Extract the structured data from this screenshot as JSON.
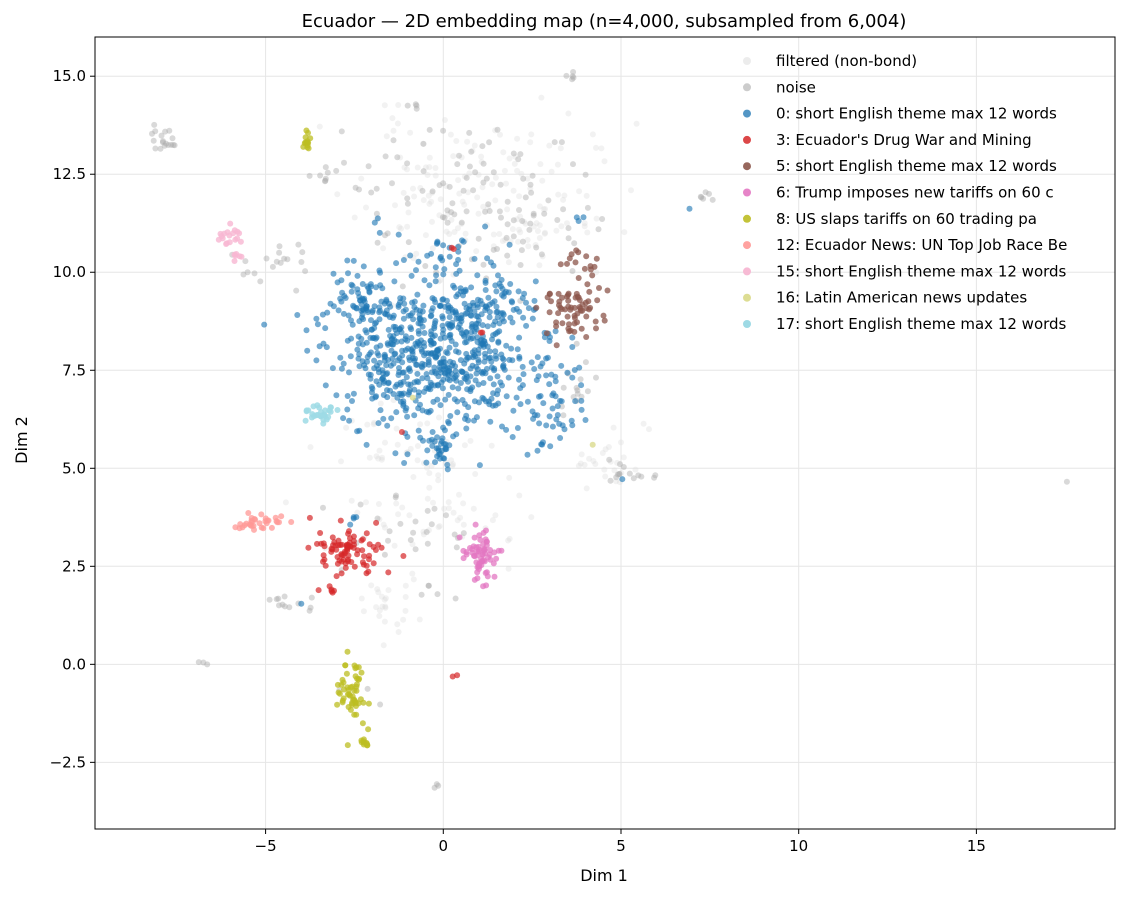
{
  "chart_data": {
    "type": "scatter",
    "title": "Ecuador — 2D embedding map (n=4,000, subsampled from 6,004)",
    "xlabel": "Dim 1",
    "ylabel": "Dim 2",
    "xlim": [
      -9.8,
      18.9
    ],
    "ylim": [
      -4.2,
      16.0
    ],
    "x_ticks": [
      -5,
      0,
      5,
      10,
      15
    ],
    "x_tick_labels": [
      "−5",
      "0",
      "5",
      "10",
      "15"
    ],
    "y_ticks": [
      -2.5,
      0.0,
      2.5,
      5.0,
      7.5,
      10.0,
      12.5,
      15.0
    ],
    "y_tick_labels": [
      "−2.5",
      "0.0",
      "2.5",
      "5.0",
      "7.5",
      "10.0",
      "12.5",
      "15.0"
    ],
    "grid": true,
    "legend_position": "top-right",
    "series": [
      {
        "name": "filtered (non-bond)",
        "color": "#d9d9d9",
        "opacity": 0.35,
        "seed": 11,
        "clusters": [
          {
            "cx": 0.8,
            "cy": 12.0,
            "sx": 1.6,
            "sy": 1.0,
            "n": 140
          },
          {
            "cx": -1.0,
            "cy": 5.6,
            "sx": 1.2,
            "sy": 0.5,
            "n": 45
          },
          {
            "cx": -0.7,
            "cy": 3.6,
            "sx": 1.5,
            "sy": 0.7,
            "n": 45
          },
          {
            "cx": -1.4,
            "cy": 1.5,
            "sx": 0.4,
            "sy": 0.5,
            "n": 25
          },
          {
            "cx": 4.6,
            "cy": 5.1,
            "sx": 0.5,
            "sy": 0.3,
            "n": 25
          },
          {
            "cx": 2.7,
            "cy": 11.0,
            "sx": 0.8,
            "sy": 0.6,
            "n": 25
          }
        ]
      },
      {
        "name": "noise",
        "color": "#aaaaaa",
        "opacity": 0.45,
        "seed": 23,
        "clusters": [
          {
            "cx": 0.5,
            "cy": 12.0,
            "sx": 1.8,
            "sy": 1.1,
            "n": 90
          },
          {
            "cx": -7.8,
            "cy": 13.4,
            "sx": 0.25,
            "sy": 0.2,
            "n": 18
          },
          {
            "cx": -3.3,
            "cy": 12.3,
            "sx": 0.4,
            "sy": 0.15,
            "n": 10
          },
          {
            "cx": -4.2,
            "cy": 10.4,
            "sx": 0.3,
            "sy": 0.15,
            "n": 8
          },
          {
            "cx": -5.3,
            "cy": 10.2,
            "sx": 0.3,
            "sy": 0.3,
            "n": 10
          },
          {
            "cx": 2.5,
            "cy": 10.8,
            "sx": 0.6,
            "sy": 0.6,
            "n": 20
          },
          {
            "cx": 3.6,
            "cy": 15.0,
            "sx": 0.08,
            "sy": 0.05,
            "n": 5
          },
          {
            "cx": -0.8,
            "cy": 14.2,
            "sx": 0.06,
            "sy": 0.05,
            "n": 3
          },
          {
            "cx": 7.3,
            "cy": 11.9,
            "sx": 0.15,
            "sy": 0.1,
            "n": 6
          },
          {
            "cx": 5.0,
            "cy": 4.8,
            "sx": 0.4,
            "sy": 0.2,
            "n": 14
          },
          {
            "cx": -4.2,
            "cy": 1.5,
            "sx": 0.4,
            "sy": 0.15,
            "n": 12
          },
          {
            "cx": -1.0,
            "cy": 3.6,
            "sx": 1.2,
            "sy": 0.5,
            "n": 25
          },
          {
            "cx": -0.2,
            "cy": 1.8,
            "sx": 0.2,
            "sy": 0.1,
            "n": 5
          },
          {
            "cx": -2.8,
            "cy": -0.7,
            "sx": 0.3,
            "sy": 0.2,
            "n": 6
          },
          {
            "cx": -6.8,
            "cy": 0.1,
            "sx": 0.1,
            "sy": 0.05,
            "n": 3
          },
          {
            "cx": -0.2,
            "cy": -3.1,
            "sx": 0.05,
            "sy": 0.05,
            "n": 3
          },
          {
            "cx": 17.5,
            "cy": 4.7,
            "sx": 0.03,
            "sy": 0.03,
            "n": 1
          },
          {
            "cx": 3.7,
            "cy": 7.0,
            "sx": 0.3,
            "sy": 0.5,
            "n": 15
          }
        ]
      },
      {
        "name": "0: short English theme max 12 words",
        "color": "#1f77b4",
        "opacity": 0.62,
        "seed": 37,
        "clusters": [
          {
            "cx": -0.2,
            "cy": 7.9,
            "sx": 1.35,
            "sy": 1.0,
            "n": 650
          },
          {
            "cx": -2.4,
            "cy": 9.3,
            "sx": 0.45,
            "sy": 0.45,
            "n": 70
          },
          {
            "cx": 1.0,
            "cy": 9.3,
            "sx": 0.7,
            "sy": 0.55,
            "n": 70
          },
          {
            "cx": 3.0,
            "cy": 6.8,
            "sx": 0.5,
            "sy": 0.7,
            "n": 55
          },
          {
            "cx": -0.1,
            "cy": 5.5,
            "sx": 0.2,
            "sy": 0.2,
            "n": 25
          },
          {
            "cx": 0.0,
            "cy": 10.5,
            "sx": 0.3,
            "sy": 0.2,
            "n": 15
          },
          {
            "cx": -2.5,
            "cy": 3.7,
            "sx": 0.1,
            "sy": 0.1,
            "n": 4
          },
          {
            "cx": 6.95,
            "cy": 11.65,
            "sx": 0.03,
            "sy": 0.03,
            "n": 1
          },
          {
            "cx": 5.0,
            "cy": 4.75,
            "sx": 0.03,
            "sy": 0.03,
            "n": 1
          },
          {
            "cx": -5.0,
            "cy": 8.7,
            "sx": 0.03,
            "sy": 0.03,
            "n": 1
          },
          {
            "cx": -1.9,
            "cy": 11.3,
            "sx": 0.05,
            "sy": 0.05,
            "n": 2
          },
          {
            "cx": 3.8,
            "cy": 11.3,
            "sx": 0.1,
            "sy": 0.1,
            "n": 3
          },
          {
            "cx": -4.0,
            "cy": 1.6,
            "sx": 0.03,
            "sy": 0.03,
            "n": 1
          }
        ]
      },
      {
        "name": "3: Ecuador's Drug War and Mining",
        "color": "#d62728",
        "opacity": 0.7,
        "seed": 41,
        "clusters": [
          {
            "cx": -2.6,
            "cy": 2.9,
            "sx": 0.45,
            "sy": 0.3,
            "n": 85
          },
          {
            "cx": -3.2,
            "cy": 1.9,
            "sx": 0.08,
            "sy": 0.08,
            "n": 5
          },
          {
            "cx": 0.35,
            "cy": -0.3,
            "sx": 0.05,
            "sy": 0.05,
            "n": 2
          },
          {
            "cx": 1.1,
            "cy": 8.5,
            "sx": 0.05,
            "sy": 0.05,
            "n": 2
          },
          {
            "cx": -1.2,
            "cy": 5.9,
            "sx": 0.03,
            "sy": 0.03,
            "n": 1
          },
          {
            "cx": 0.3,
            "cy": 10.6,
            "sx": 0.05,
            "sy": 0.05,
            "n": 2
          }
        ]
      },
      {
        "name": "5: short English theme max 12 words",
        "color": "#8c564b",
        "opacity": 0.75,
        "seed": 53,
        "clusters": [
          {
            "cx": 3.6,
            "cy": 9.0,
            "sx": 0.45,
            "sy": 0.3,
            "n": 65
          },
          {
            "cx": 3.8,
            "cy": 10.2,
            "sx": 0.35,
            "sy": 0.2,
            "n": 15
          }
        ]
      },
      {
        "name": "6: Trump imposes new tariffs on 60 c",
        "color": "#e377c2",
        "opacity": 0.75,
        "seed": 67,
        "clusters": [
          {
            "cx": 1.05,
            "cy": 2.8,
            "sx": 0.22,
            "sy": 0.3,
            "n": 65
          }
        ]
      },
      {
        "name": "8: US slaps tariffs on 60 trading pa",
        "color": "#bcbd22",
        "opacity": 0.75,
        "seed": 71,
        "clusters": [
          {
            "cx": -2.6,
            "cy": -0.7,
            "sx": 0.22,
            "sy": 0.45,
            "n": 55
          },
          {
            "cx": -2.2,
            "cy": -2.0,
            "sx": 0.05,
            "sy": 0.06,
            "n": 10
          },
          {
            "cx": -3.85,
            "cy": 13.35,
            "sx": 0.07,
            "sy": 0.12,
            "n": 14
          }
        ]
      },
      {
        "name": "12: Ecuador News: UN Top Job Race Be",
        "color": "#ff9896",
        "opacity": 0.75,
        "seed": 79,
        "clusters": [
          {
            "cx": -5.4,
            "cy": 3.55,
            "sx": 0.22,
            "sy": 0.12,
            "n": 25
          },
          {
            "cx": -4.6,
            "cy": 3.65,
            "sx": 0.18,
            "sy": 0.05,
            "n": 8
          }
        ]
      },
      {
        "name": "15: short English theme max 12 words",
        "color": "#f7b6d2",
        "opacity": 0.8,
        "seed": 83,
        "clusters": [
          {
            "cx": -6.0,
            "cy": 10.9,
            "sx": 0.15,
            "sy": 0.15,
            "n": 18
          },
          {
            "cx": -5.8,
            "cy": 10.4,
            "sx": 0.06,
            "sy": 0.06,
            "n": 6
          }
        ]
      },
      {
        "name": "16: Latin American news updates",
        "color": "#dbdb8d",
        "opacity": 0.8,
        "seed": 89,
        "clusters": [
          {
            "cx": 4.2,
            "cy": 5.6,
            "sx": 0.03,
            "sy": 0.03,
            "n": 1
          },
          {
            "cx": -0.9,
            "cy": 6.8,
            "sx": 0.03,
            "sy": 0.03,
            "n": 1
          }
        ]
      },
      {
        "name": "17: short English theme max 12 words",
        "color": "#9edae5",
        "opacity": 0.85,
        "seed": 97,
        "clusters": [
          {
            "cx": -3.5,
            "cy": 6.4,
            "sx": 0.25,
            "sy": 0.13,
            "n": 28
          }
        ]
      }
    ]
  }
}
